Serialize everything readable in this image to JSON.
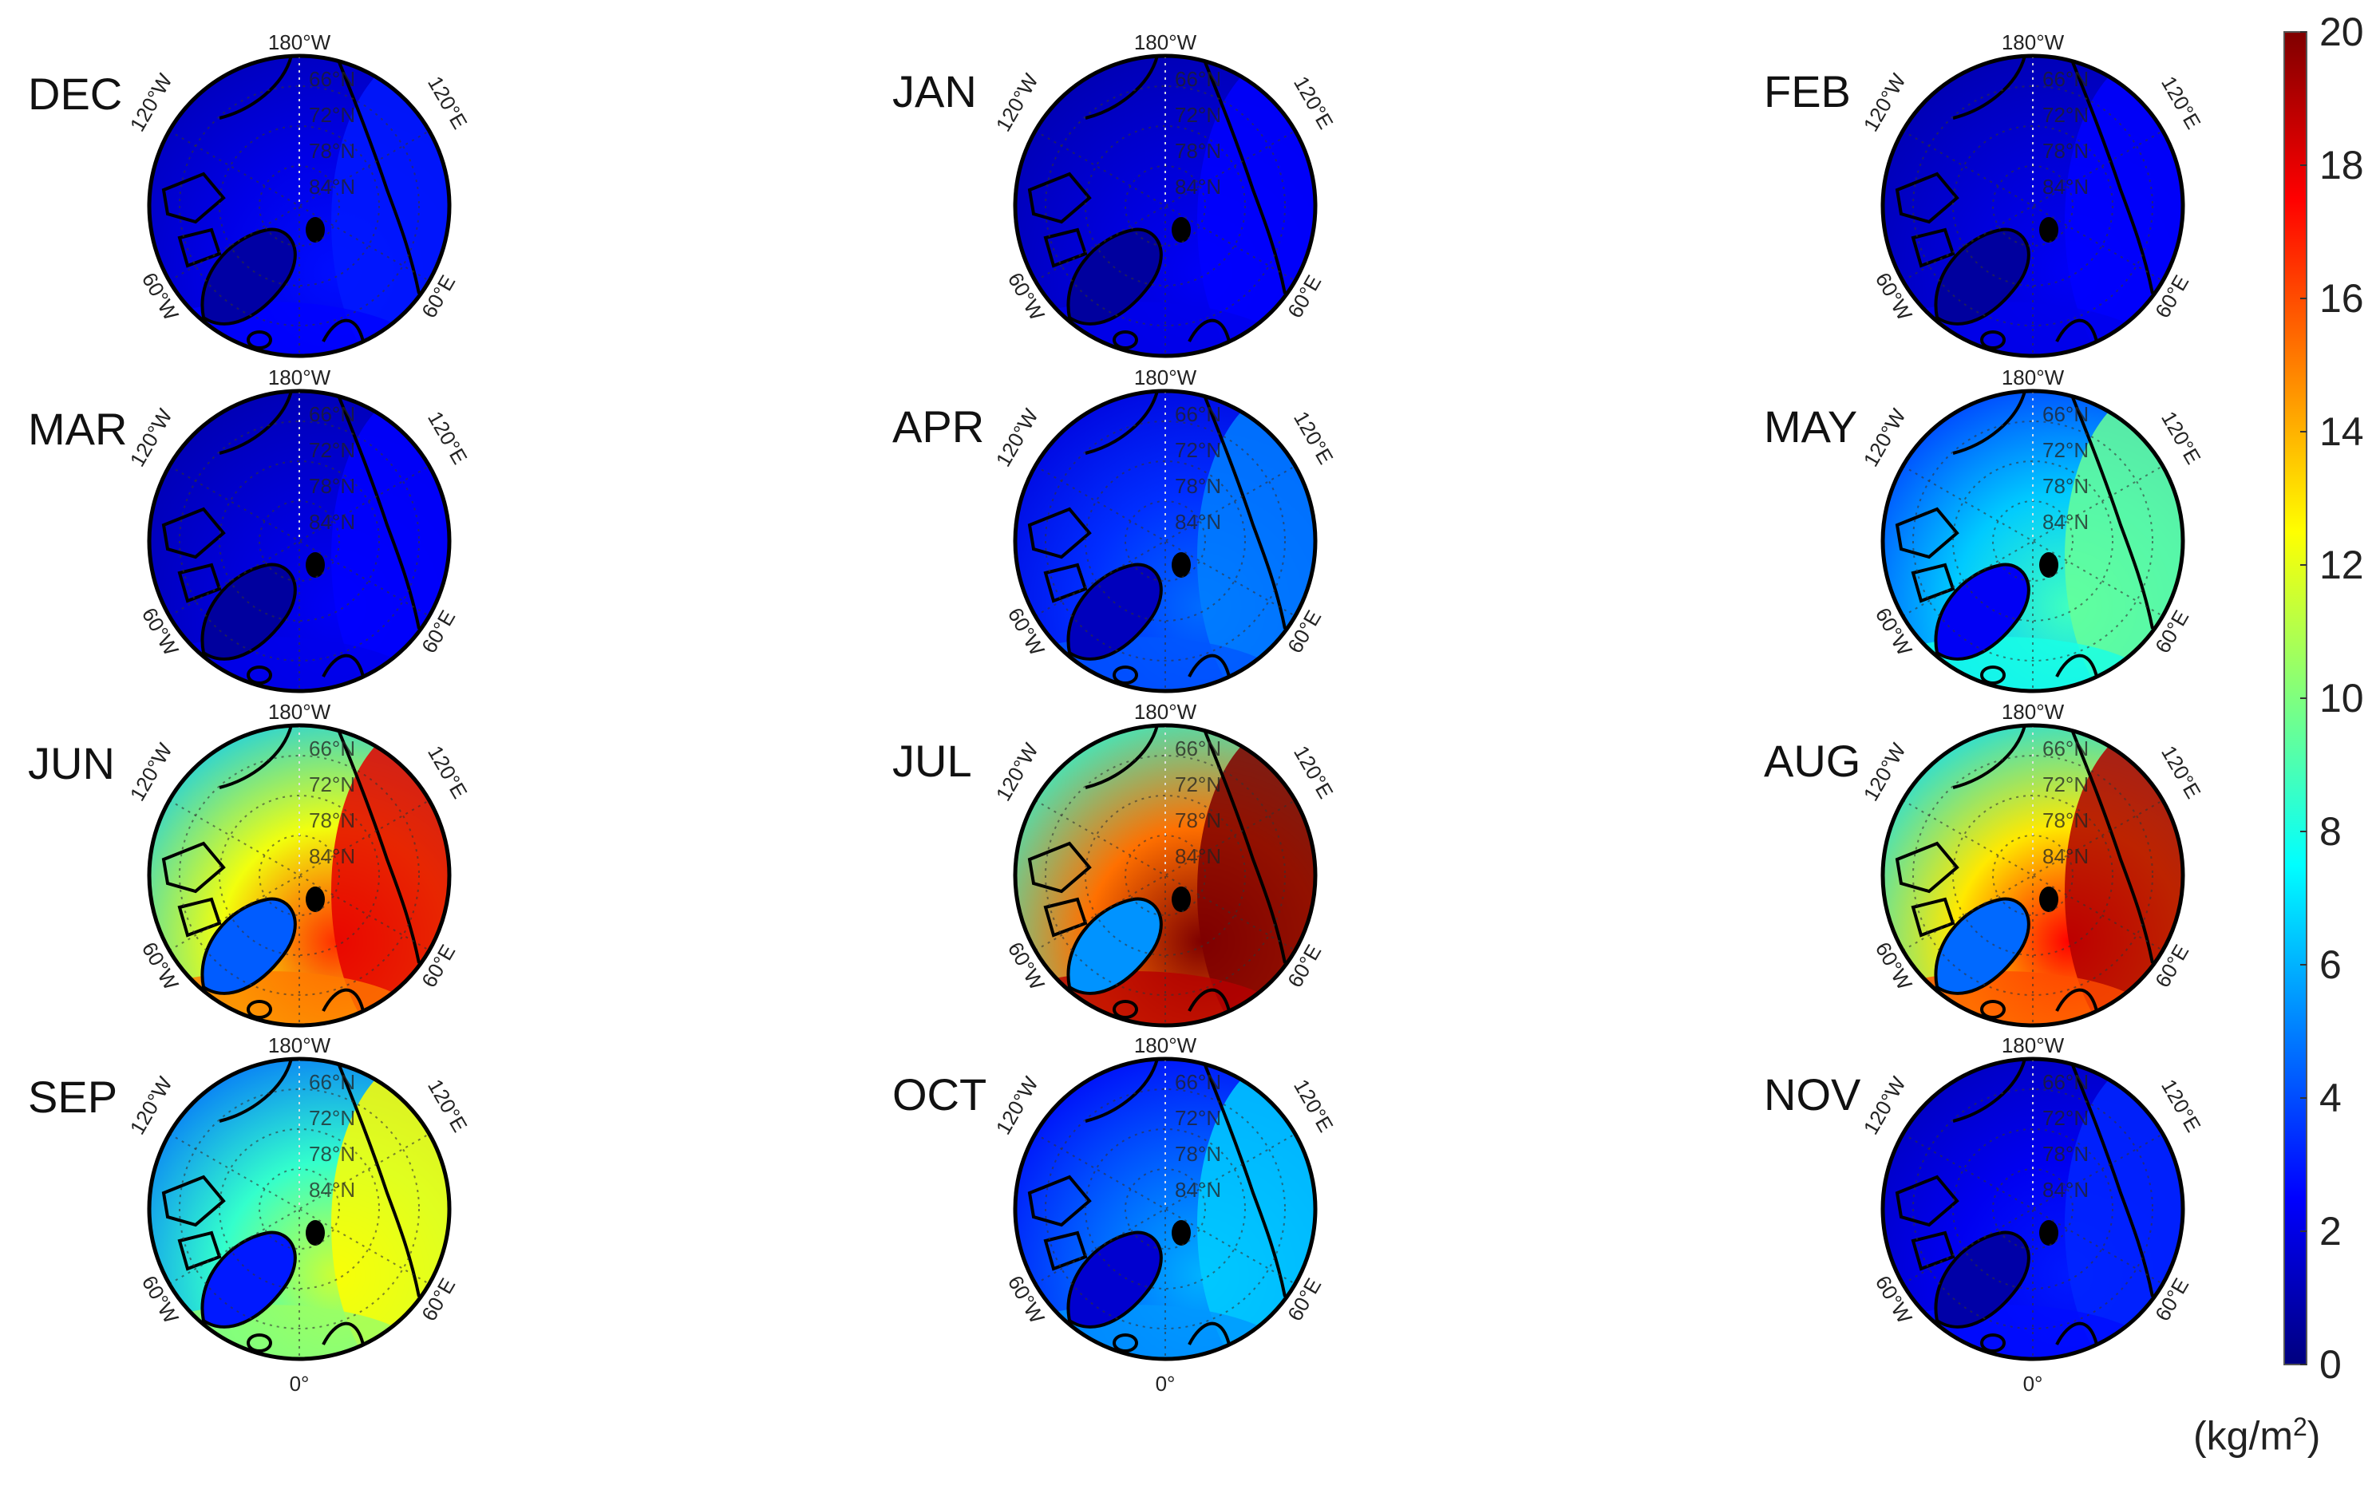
{
  "figure": {
    "panels": [
      {
        "month": "DEC",
        "level": 0.12
      },
      {
        "month": "JAN",
        "level": 0.1
      },
      {
        "month": "FEB",
        "level": 0.1
      },
      {
        "month": "MAR",
        "level": 0.1
      },
      {
        "month": "APR",
        "level": 0.2
      },
      {
        "month": "MAY",
        "level": 0.38
      },
      {
        "month": "JUN",
        "level": 0.72
      },
      {
        "month": "JUL",
        "level": 0.9
      },
      {
        "month": "AUG",
        "level": 0.76
      },
      {
        "month": "SEP",
        "level": 0.5
      },
      {
        "month": "OCT",
        "level": 0.26
      },
      {
        "month": "NOV",
        "level": 0.13
      }
    ],
    "graticule": {
      "lon_180": "180°W",
      "lon_120w": "120°W",
      "lon_120e": "120°E",
      "lon_60w": "60°W",
      "lon_60e": "60°E",
      "lon_0": "0°",
      "lats": [
        "66°N",
        "72°N",
        "78°N",
        "84°N"
      ]
    },
    "colorbar": {
      "min": 0,
      "max": 20,
      "ticks": [
        "0",
        "2",
        "4",
        "6",
        "8",
        "10",
        "12",
        "14",
        "16",
        "18",
        "20"
      ],
      "unit": "(kg/m",
      "unit_exp": "2",
      "unit_close": ")",
      "colormap": [
        "#00007f",
        "#0000ff",
        "#007fff",
        "#00ffff",
        "#7fff7f",
        "#ffff00",
        "#ff7f00",
        "#ff0000",
        "#7f0000"
      ]
    }
  }
}
